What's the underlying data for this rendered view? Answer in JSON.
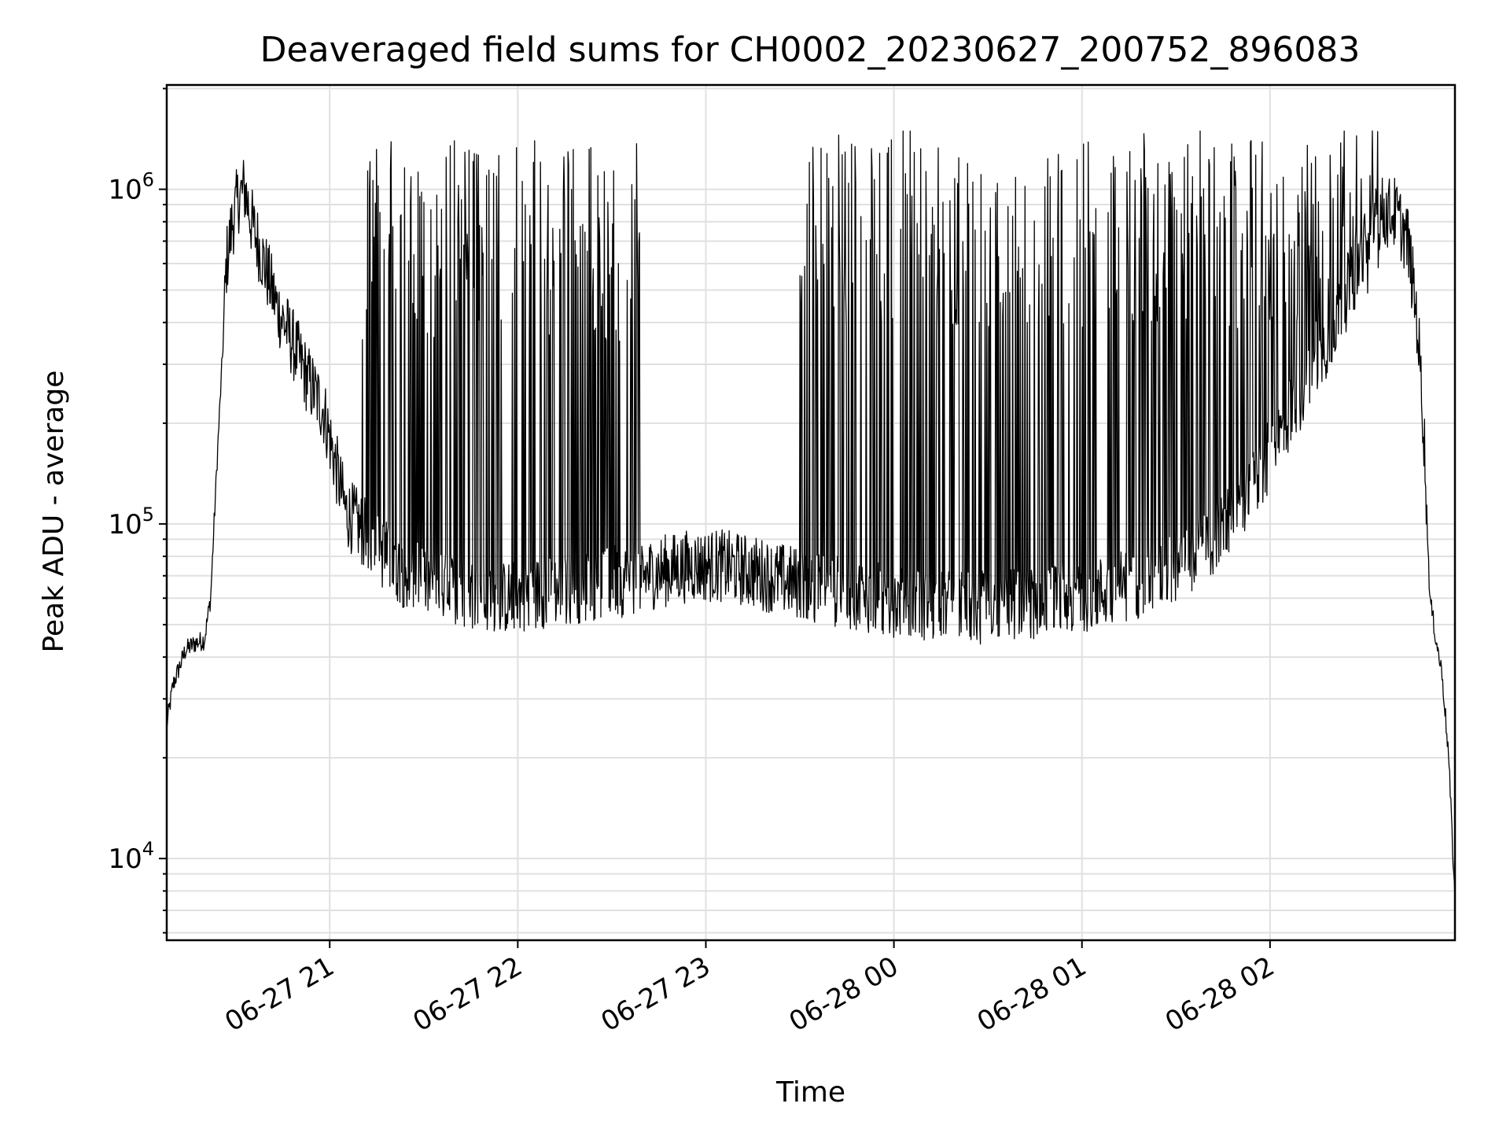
{
  "chart_data": {
    "type": "line",
    "title": "Deaveraged field sums for CH0002_20230627_200752_896083",
    "xlabel": "Time",
    "ylabel": "Peak ADU - average",
    "yscale": "log",
    "ylim": [
      5700,
      2050000
    ],
    "xlim": [
      "2023-06-27 20:08",
      "2023-06-28 02:59"
    ],
    "grid": true,
    "line_color": "#000000",
    "x_ticks": [
      {
        "label": "06-27 21",
        "time": "2023-06-27 21:00"
      },
      {
        "label": "06-27 22",
        "time": "2023-06-27 22:00"
      },
      {
        "label": "06-27 23",
        "time": "2023-06-27 23:00"
      },
      {
        "label": "06-28 00",
        "time": "2023-06-28 00:00"
      },
      {
        "label": "06-28 01",
        "time": "2023-06-28 01:00"
      },
      {
        "label": "06-28 02",
        "time": "2023-06-28 02:00"
      }
    ],
    "y_ticks": [
      {
        "base": "10",
        "exp": "4",
        "value": 10000
      },
      {
        "base": "10",
        "exp": "5",
        "value": 100000
      },
      {
        "base": "10",
        "exp": "6",
        "value": 1000000
      }
    ],
    "series": [
      {
        "x": [
          "2023-06-27 20:08",
          "2023-06-27 20:10",
          "2023-06-27 20:14",
          "2023-06-27 20:17",
          "2023-06-27 20:20",
          "2023-06-27 20:22",
          "2023-06-27 20:24",
          "2023-06-27 20:26",
          "2023-06-27 20:27",
          "2023-06-27 20:29",
          "2023-06-27 20:31",
          "2023-06-27 20:33",
          "2023-06-27 20:35",
          "2023-06-27 20:38",
          "2023-06-27 20:43",
          "2023-06-27 20:48",
          "2023-06-27 20:53",
          "2023-06-27 20:58",
          "2023-06-27 21:05",
          "2023-06-27 21:15",
          "2023-06-27 21:25",
          "2023-06-27 21:35",
          "2023-06-27 21:45",
          "2023-06-27 21:55",
          "2023-06-27 22:05",
          "2023-06-27 22:15",
          "2023-06-27 22:25",
          "2023-06-27 22:35",
          "2023-06-27 22:45",
          "2023-06-27 22:55",
          "2023-06-27 23:05",
          "2023-06-27 23:15",
          "2023-06-27 23:25",
          "2023-06-27 23:35",
          "2023-06-27 23:45",
          "2023-06-27 23:55",
          "2023-06-28 00:05",
          "2023-06-28 00:15",
          "2023-06-28 00:25",
          "2023-06-28 00:35",
          "2023-06-28 00:45",
          "2023-06-28 00:55",
          "2023-06-28 01:05",
          "2023-06-28 01:15",
          "2023-06-28 01:25",
          "2023-06-28 01:35",
          "2023-06-28 01:45",
          "2023-06-28 01:55",
          "2023-06-28 02:05",
          "2023-06-28 02:15",
          "2023-06-28 02:25",
          "2023-06-28 02:35",
          "2023-06-28 02:40",
          "2023-06-28 02:44",
          "2023-06-28 02:47",
          "2023-06-28 02:49",
          "2023-06-28 02:51",
          "2023-06-28 02:53",
          "2023-06-28 02:55",
          "2023-06-28 02:57",
          "2023-06-28 02:59"
        ],
        "values": [
          25000,
          33000,
          42000,
          44000,
          45000,
          60000,
          150000,
          350000,
          600000,
          800000,
          950000,
          1000000,
          800000,
          650000,
          450000,
          350000,
          270000,
          220000,
          110000,
          85000,
          70000,
          65000,
          62000,
          60000,
          62000,
          64000,
          66000,
          68000,
          72000,
          75000,
          75000,
          72000,
          68000,
          65000,
          62000,
          60000,
          58000,
          57000,
          56000,
          57000,
          58000,
          60000,
          62000,
          66000,
          70000,
          80000,
          95000,
          130000,
          200000,
          300000,
          500000,
          850000,
          850000,
          700000,
          400000,
          200000,
          60000,
          45000,
          35000,
          20000,
          7500
        ],
        "spike_bands": [
          {
            "from": "2023-06-27 21:10",
            "to": "2023-06-27 22:40",
            "high": 1400000
          },
          {
            "from": "2023-06-27 23:30",
            "to": "2023-06-28 02:35",
            "high": 1500000
          }
        ]
      }
    ]
  }
}
